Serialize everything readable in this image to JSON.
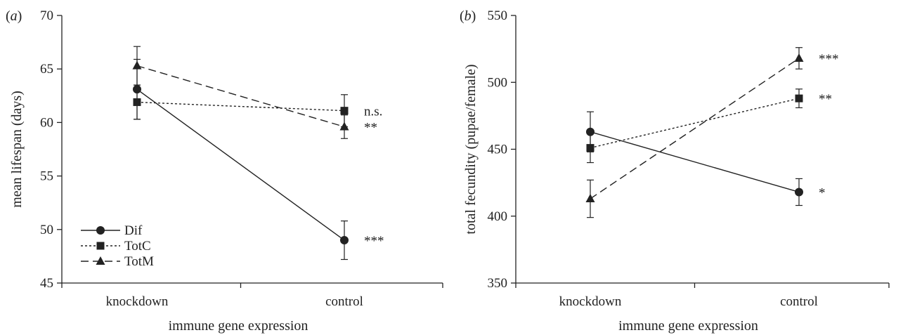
{
  "chart_data": [
    {
      "type": "line",
      "panel_label": "(a)",
      "categories": [
        "knockdown",
        "control"
      ],
      "xlabel": "immune gene expression",
      "ylabel": "mean lifespan (days)",
      "ylim": [
        45,
        70
      ],
      "yticks": [
        45,
        50,
        55,
        60,
        65,
        70
      ],
      "legend": "bottom-left",
      "series": [
        {
          "name": "Dif",
          "marker": "circle",
          "dash": "solid",
          "values": [
            63.1,
            49.0
          ],
          "errors": [
            2.8,
            1.8
          ],
          "significance": "***"
        },
        {
          "name": "TotC",
          "marker": "square",
          "dash": "dotted",
          "values": [
            61.9,
            61.1
          ],
          "errors": [
            1.6,
            1.5
          ],
          "significance": "n.s."
        },
        {
          "name": "TotM",
          "marker": "triangle",
          "dash": "dashed",
          "values": [
            65.3,
            59.6
          ],
          "errors": [
            1.8,
            1.1
          ],
          "significance": "**"
        }
      ]
    },
    {
      "type": "line",
      "panel_label": "(b)",
      "categories": [
        "knockdown",
        "control"
      ],
      "xlabel": "immune gene expression",
      "ylabel": "total fecundity (pupae/female)",
      "ylim": [
        350,
        550
      ],
      "yticks": [
        350,
        400,
        450,
        500,
        550
      ],
      "series": [
        {
          "name": "Dif",
          "marker": "circle",
          "dash": "solid",
          "values": [
            463,
            418
          ],
          "errors": [
            15,
            10
          ],
          "significance": "*"
        },
        {
          "name": "TotC",
          "marker": "square",
          "dash": "dotted",
          "values": [
            451,
            488
          ],
          "errors": [
            11,
            7
          ],
          "significance": "**"
        },
        {
          "name": "TotM",
          "marker": "triangle",
          "dash": "dashed",
          "values": [
            413,
            518
          ],
          "errors": [
            14,
            8
          ],
          "significance": "***"
        }
      ]
    }
  ]
}
